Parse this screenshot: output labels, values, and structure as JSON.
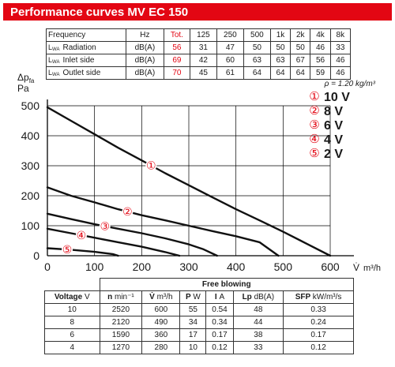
{
  "header": {
    "title": "Performance curves MV EC 150"
  },
  "freq_table": {
    "header": [
      "Frequency",
      "Hz",
      "Tot.",
      "125",
      "250",
      "500",
      "1k",
      "2k",
      "4k",
      "8k"
    ],
    "rows": [
      {
        "prefix": "L",
        "sub": "WA",
        "label": "Radiation",
        "unit": "dB(A)",
        "tot": "56",
        "values": [
          "31",
          "47",
          "50",
          "50",
          "50",
          "46",
          "33"
        ]
      },
      {
        "prefix": "L",
        "sub": "WA",
        "label": "Inlet side",
        "unit": "dB(A)",
        "tot": "69",
        "values": [
          "42",
          "60",
          "63",
          "63",
          "67",
          "56",
          "46"
        ]
      },
      {
        "prefix": "L",
        "sub": "WA",
        "label": "Outlet side",
        "unit": "dB(A)",
        "tot": "70",
        "values": [
          "45",
          "61",
          "64",
          "64",
          "64",
          "59",
          "46"
        ]
      }
    ]
  },
  "chart_data": {
    "type": "line",
    "ylabel_main": "Δp",
    "ylabel_sub": "fa",
    "ylabel_unit": "Pa",
    "xlabel_sym": "V̇",
    "xlabel_unit": "m³/h",
    "density_label": "ρ = 1.20 kg/m³",
    "xlim": [
      0,
      600
    ],
    "ylim": [
      0,
      500
    ],
    "xticks": [
      0,
      100,
      200,
      300,
      400,
      500,
      600
    ],
    "yticks": [
      0,
      100,
      200,
      300,
      400,
      500
    ],
    "grid": true,
    "legend_position": "top-right",
    "series": [
      {
        "name": "10 V",
        "marker": "①",
        "points": [
          [
            0,
            495
          ],
          [
            50,
            450
          ],
          [
            100,
            405
          ],
          [
            150,
            360
          ],
          [
            200,
            318
          ],
          [
            250,
            275
          ],
          [
            300,
            235
          ],
          [
            350,
            195
          ],
          [
            400,
            155
          ],
          [
            450,
            118
          ],
          [
            500,
            80
          ],
          [
            550,
            40
          ],
          [
            600,
            0
          ]
        ]
      },
      {
        "name": "8 V",
        "marker": "②",
        "points": [
          [
            0,
            228
          ],
          [
            50,
            200
          ],
          [
            100,
            178
          ],
          [
            150,
            155
          ],
          [
            200,
            135
          ],
          [
            250,
            118
          ],
          [
            300,
            100
          ],
          [
            350,
            82
          ],
          [
            400,
            65
          ],
          [
            450,
            45
          ],
          [
            490,
            0
          ]
        ]
      },
      {
        "name": "6 V",
        "marker": "③",
        "points": [
          [
            0,
            140
          ],
          [
            50,
            122
          ],
          [
            100,
            105
          ],
          [
            150,
            90
          ],
          [
            200,
            75
          ],
          [
            250,
            58
          ],
          [
            300,
            38
          ],
          [
            330,
            22
          ],
          [
            360,
            0
          ]
        ]
      },
      {
        "name": "4 V",
        "marker": "④",
        "points": [
          [
            0,
            90
          ],
          [
            50,
            75
          ],
          [
            100,
            60
          ],
          [
            150,
            45
          ],
          [
            200,
            30
          ],
          [
            250,
            12
          ],
          [
            280,
            0
          ]
        ]
      },
      {
        "name": "2 V",
        "marker": "⑤",
        "points": [
          [
            0,
            25
          ],
          [
            50,
            20
          ],
          [
            100,
            13
          ],
          [
            140,
            5
          ],
          [
            150,
            0
          ]
        ]
      }
    ]
  },
  "free_blowing": {
    "title": "Free blowing",
    "columns": [
      {
        "sym": "Voltage",
        "unit": "V"
      },
      {
        "sym": "n",
        "unit": "min⁻¹"
      },
      {
        "sym": "V̇",
        "unit": "m³/h"
      },
      {
        "sym": "P",
        "unit": "W"
      },
      {
        "sym": "I",
        "unit": "A"
      },
      {
        "sym": "Lp",
        "unit": "dB(A)"
      },
      {
        "sym": "SFP",
        "unit": "kW/m³/s"
      }
    ],
    "rows": [
      [
        "10",
        "2520",
        "600",
        "55",
        "0.54",
        "48",
        "0.33"
      ],
      [
        "8",
        "2120",
        "490",
        "34",
        "0.34",
        "44",
        "0.24"
      ],
      [
        "6",
        "1590",
        "360",
        "17",
        "0.17",
        "38",
        "0.17"
      ],
      [
        "4",
        "1270",
        "280",
        "10",
        "0.12",
        "33",
        "0.12"
      ]
    ]
  },
  "colors": {
    "accent": "#e30613",
    "text": "#1a1a1a",
    "grid": "#000000"
  }
}
